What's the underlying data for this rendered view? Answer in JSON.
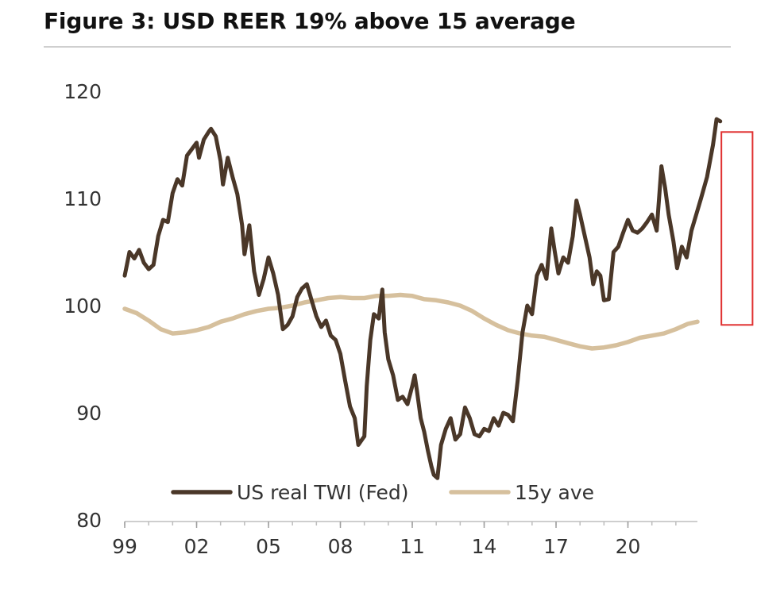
{
  "chart_data": {
    "type": "line",
    "title": "Figure 3: USD REER 19% above 15 average",
    "xlabel": "",
    "ylabel": "",
    "xlim": [
      1999,
      2022.9
    ],
    "ylim": [
      80,
      120
    ],
    "x_tick_labels": [
      "99",
      "02",
      "05",
      "08",
      "11",
      "14",
      "17",
      "20"
    ],
    "x_tick_values": [
      1999,
      2002,
      2005,
      2008,
      2011,
      2014,
      2017,
      2020
    ],
    "y_ticks": [
      80,
      90,
      100,
      110,
      120
    ],
    "grid": false,
    "legend": "bottom-center",
    "series": [
      {
        "name": "US real TWI (Fed)",
        "color": "#4a3728",
        "points": [
          [
            1999.0,
            102.8
          ],
          [
            1999.2,
            105.0
          ],
          [
            1999.4,
            104.4
          ],
          [
            1999.6,
            105.2
          ],
          [
            1999.8,
            104.0
          ],
          [
            2000.0,
            103.4
          ],
          [
            2000.2,
            103.8
          ],
          [
            2000.4,
            106.5
          ],
          [
            2000.6,
            108.0
          ],
          [
            2000.8,
            107.8
          ],
          [
            2001.0,
            110.5
          ],
          [
            2001.2,
            111.8
          ],
          [
            2001.4,
            111.2
          ],
          [
            2001.6,
            114.0
          ],
          [
            2001.8,
            114.6
          ],
          [
            2002.0,
            115.2
          ],
          [
            2002.1,
            113.8
          ],
          [
            2002.3,
            115.5
          ],
          [
            2002.5,
            116.2
          ],
          [
            2002.6,
            116.5
          ],
          [
            2002.8,
            115.8
          ],
          [
            2003.0,
            113.5
          ],
          [
            2003.1,
            111.3
          ],
          [
            2003.3,
            113.8
          ],
          [
            2003.5,
            112.0
          ],
          [
            2003.7,
            110.4
          ],
          [
            2003.9,
            107.5
          ],
          [
            2004.0,
            104.8
          ],
          [
            2004.2,
            107.5
          ],
          [
            2004.4,
            103.2
          ],
          [
            2004.6,
            101.0
          ],
          [
            2004.8,
            102.5
          ],
          [
            2005.0,
            104.5
          ],
          [
            2005.2,
            103.0
          ],
          [
            2005.4,
            101.0
          ],
          [
            2005.6,
            97.8
          ],
          [
            2005.8,
            98.2
          ],
          [
            2006.0,
            99.0
          ],
          [
            2006.2,
            100.8
          ],
          [
            2006.4,
            101.6
          ],
          [
            2006.6,
            102.0
          ],
          [
            2006.8,
            100.5
          ],
          [
            2007.0,
            99.0
          ],
          [
            2007.2,
            98.0
          ],
          [
            2007.4,
            98.6
          ],
          [
            2007.6,
            97.2
          ],
          [
            2007.8,
            96.8
          ],
          [
            2008.0,
            95.5
          ],
          [
            2008.2,
            93.0
          ],
          [
            2008.4,
            90.6
          ],
          [
            2008.6,
            89.5
          ],
          [
            2008.75,
            87.0
          ],
          [
            2008.9,
            87.5
          ],
          [
            2009.0,
            87.8
          ],
          [
            2009.1,
            92.5
          ],
          [
            2009.25,
            96.8
          ],
          [
            2009.4,
            99.2
          ],
          [
            2009.6,
            98.8
          ],
          [
            2009.75,
            101.5
          ],
          [
            2009.85,
            97.5
          ],
          [
            2010.0,
            95.0
          ],
          [
            2010.2,
            93.5
          ],
          [
            2010.4,
            91.2
          ],
          [
            2010.6,
            91.5
          ],
          [
            2010.8,
            90.8
          ],
          [
            2011.0,
            92.5
          ],
          [
            2011.1,
            93.5
          ],
          [
            2011.2,
            92.0
          ],
          [
            2011.35,
            89.5
          ],
          [
            2011.5,
            88.2
          ],
          [
            2011.65,
            86.5
          ],
          [
            2011.8,
            85.0
          ],
          [
            2011.9,
            84.2
          ],
          [
            2012.05,
            83.9
          ],
          [
            2012.2,
            87.0
          ],
          [
            2012.4,
            88.5
          ],
          [
            2012.6,
            89.5
          ],
          [
            2012.8,
            87.5
          ],
          [
            2013.0,
            88.0
          ],
          [
            2013.2,
            90.5
          ],
          [
            2013.4,
            89.5
          ],
          [
            2013.6,
            88.0
          ],
          [
            2013.8,
            87.8
          ],
          [
            2014.0,
            88.5
          ],
          [
            2014.2,
            88.3
          ],
          [
            2014.4,
            89.5
          ],
          [
            2014.6,
            88.8
          ],
          [
            2014.8,
            90.0
          ],
          [
            2015.0,
            89.8
          ],
          [
            2015.2,
            89.2
          ],
          [
            2015.4,
            93.0
          ],
          [
            2015.6,
            97.5
          ],
          [
            2015.8,
            100.0
          ],
          [
            2016.0,
            99.2
          ],
          [
            2016.2,
            102.8
          ],
          [
            2016.4,
            103.8
          ],
          [
            2016.6,
            102.5
          ],
          [
            2016.8,
            107.2
          ],
          [
            2016.95,
            105.0
          ],
          [
            2017.1,
            103.0
          ],
          [
            2017.3,
            104.5
          ],
          [
            2017.5,
            104.0
          ],
          [
            2017.7,
            106.5
          ],
          [
            2017.85,
            109.8
          ],
          [
            2018.0,
            108.5
          ],
          [
            2018.2,
            106.5
          ],
          [
            2018.4,
            104.5
          ],
          [
            2018.55,
            102.0
          ],
          [
            2018.7,
            103.2
          ],
          [
            2018.85,
            102.8
          ],
          [
            2019.0,
            100.5
          ],
          [
            2019.2,
            100.6
          ],
          [
            2019.4,
            105.0
          ],
          [
            2019.6,
            105.5
          ],
          [
            2019.8,
            106.8
          ],
          [
            2020.0,
            108.0
          ],
          [
            2020.2,
            107.0
          ],
          [
            2020.4,
            106.8
          ],
          [
            2020.6,
            107.2
          ],
          [
            2020.8,
            107.8
          ],
          [
            2021.0,
            108.5
          ],
          [
            2021.2,
            107.0
          ],
          [
            2021.4,
            113.0
          ],
          [
            2021.55,
            111.0
          ],
          [
            2021.7,
            108.5
          ],
          [
            2021.9,
            106.0
          ],
          [
            2022.05,
            103.5
          ],
          [
            2022.25,
            105.5
          ],
          [
            2022.45,
            104.5
          ],
          [
            2022.65,
            107.0
          ],
          [
            2022.85,
            108.5
          ],
          [
            2023.05,
            110.0
          ],
          [
            2023.3,
            112.0
          ],
          [
            2023.55,
            115.0
          ],
          [
            2023.7,
            117.4
          ],
          [
            2023.85,
            117.2
          ]
        ]
      },
      {
        "name": "15y ave",
        "color": "#d6c09d",
        "points": [
          [
            1999.0,
            99.7
          ],
          [
            1999.5,
            99.3
          ],
          [
            2000.0,
            98.6
          ],
          [
            2000.5,
            97.8
          ],
          [
            2001.0,
            97.4
          ],
          [
            2001.5,
            97.5
          ],
          [
            2002.0,
            97.7
          ],
          [
            2002.5,
            98.0
          ],
          [
            2003.0,
            98.5
          ],
          [
            2003.5,
            98.8
          ],
          [
            2004.0,
            99.2
          ],
          [
            2004.5,
            99.5
          ],
          [
            2005.0,
            99.7
          ],
          [
            2005.5,
            99.8
          ],
          [
            2006.0,
            100.0
          ],
          [
            2006.5,
            100.3
          ],
          [
            2007.0,
            100.5
          ],
          [
            2007.5,
            100.7
          ],
          [
            2008.0,
            100.8
          ],
          [
            2008.5,
            100.7
          ],
          [
            2009.0,
            100.7
          ],
          [
            2009.5,
            100.9
          ],
          [
            2010.0,
            100.9
          ],
          [
            2010.5,
            101.0
          ],
          [
            2011.0,
            100.9
          ],
          [
            2011.5,
            100.6
          ],
          [
            2012.0,
            100.5
          ],
          [
            2012.5,
            100.3
          ],
          [
            2013.0,
            100.0
          ],
          [
            2013.5,
            99.5
          ],
          [
            2014.0,
            98.8
          ],
          [
            2014.5,
            98.2
          ],
          [
            2015.0,
            97.7
          ],
          [
            2015.5,
            97.4
          ],
          [
            2016.0,
            97.2
          ],
          [
            2016.5,
            97.1
          ],
          [
            2017.0,
            96.8
          ],
          [
            2017.5,
            96.5
          ],
          [
            2018.0,
            96.2
          ],
          [
            2018.5,
            96.0
          ],
          [
            2019.0,
            96.1
          ],
          [
            2019.5,
            96.3
          ],
          [
            2020.0,
            96.6
          ],
          [
            2020.5,
            97.0
          ],
          [
            2021.0,
            97.2
          ],
          [
            2021.5,
            97.4
          ],
          [
            2022.0,
            97.8
          ],
          [
            2022.5,
            98.3
          ],
          [
            2022.9,
            98.5
          ]
        ]
      }
    ],
    "annotations": [
      {
        "type": "highlight-box",
        "color": "#e03030",
        "x_range": [
          2023.9,
          2025.2
        ],
        "y_range": [
          98.2,
          116.2
        ]
      }
    ]
  }
}
